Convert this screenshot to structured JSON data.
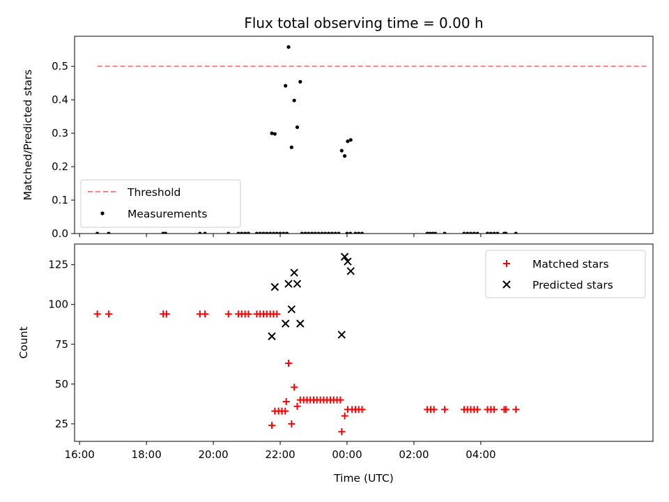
{
  "chart_data": {
    "title": "Flux total observing time = 0.00 h",
    "xlabel": "Time (UTC)",
    "x_units": "hours since 16:00 UTC",
    "xlim": [
      -0.15,
      17.15
    ],
    "x_ticks": [
      {
        "x": 0,
        "label": "16:00"
      },
      {
        "x": 2,
        "label": "18:00"
      },
      {
        "x": 4,
        "label": "20:00"
      },
      {
        "x": 6,
        "label": "22:00"
      },
      {
        "x": 8,
        "label": "00:00"
      },
      {
        "x": 10,
        "label": "02:00"
      },
      {
        "x": 12,
        "label": "04:00"
      }
    ],
    "panels": [
      {
        "type": "scatter",
        "ylabel": "Matched/Predicted stars",
        "ylim": [
          0,
          0.59
        ],
        "y_ticks": [
          "0.0",
          "0.1",
          "0.2",
          "0.3",
          "0.4",
          "0.5"
        ],
        "y_tick_values": [
          0,
          0.1,
          0.2,
          0.3,
          0.4,
          0.5
        ],
        "legend_position": "lower-left",
        "series": [
          {
            "name": "Threshold",
            "style": "dashed-line",
            "color": "#ff7f7f",
            "x": [
              0.53,
              17.0
            ],
            "y": [
              0.5,
              0.5
            ]
          },
          {
            "name": "Measurements",
            "style": "dot",
            "color": "#000000",
            "points": [
              [
                0.53,
                0
              ],
              [
                0.87,
                0
              ],
              [
                2.5,
                0
              ],
              [
                2.57,
                0
              ],
              [
                3.6,
                0
              ],
              [
                3.75,
                0
              ],
              [
                4.45,
                0
              ],
              [
                4.75,
                0
              ],
              [
                4.85,
                0
              ],
              [
                4.95,
                0
              ],
              [
                5.05,
                0
              ],
              [
                5.3,
                0
              ],
              [
                5.4,
                0
              ],
              [
                5.5,
                0
              ],
              [
                5.6,
                0
              ],
              [
                5.7,
                0
              ],
              [
                5.8,
                0
              ],
              [
                5.9,
                0
              ],
              [
                6.0,
                0
              ],
              [
                6.1,
                0
              ],
              [
                6.2,
                0
              ],
              [
                6.65,
                0
              ],
              [
                6.75,
                0
              ],
              [
                6.85,
                0
              ],
              [
                6.95,
                0
              ],
              [
                7.05,
                0
              ],
              [
                7.15,
                0
              ],
              [
                7.25,
                0
              ],
              [
                7.35,
                0
              ],
              [
                7.45,
                0
              ],
              [
                7.55,
                0
              ],
              [
                7.65,
                0
              ],
              [
                7.75,
                0
              ],
              [
                8.0,
                0
              ],
              [
                8.1,
                0
              ],
              [
                8.25,
                0
              ],
              [
                8.35,
                0
              ],
              [
                8.45,
                0
              ],
              [
                10.4,
                0
              ],
              [
                10.48,
                0
              ],
              [
                10.56,
                0
              ],
              [
                10.64,
                0
              ],
              [
                10.92,
                0
              ],
              [
                11.5,
                0
              ],
              [
                11.6,
                0
              ],
              [
                11.7,
                0
              ],
              [
                11.8,
                0
              ],
              [
                11.9,
                0
              ],
              [
                12.2,
                0
              ],
              [
                12.3,
                0
              ],
              [
                12.4,
                0
              ],
              [
                12.5,
                0
              ],
              [
                12.7,
                0
              ],
              [
                12.75,
                0
              ],
              [
                13.05,
                0
              ],
              [
                5.75,
                0.3
              ],
              [
                5.84,
                0.298
              ],
              [
                6.16,
                0.442
              ],
              [
                6.25,
                0.558
              ],
              [
                6.34,
                0.258
              ],
              [
                6.42,
                0.398
              ],
              [
                6.51,
                0.318
              ],
              [
                6.6,
                0.454
              ],
              [
                7.84,
                0.248
              ],
              [
                7.93,
                0.232
              ],
              [
                8.02,
                0.276
              ],
              [
                8.11,
                0.28
              ]
            ]
          }
        ]
      },
      {
        "type": "scatter",
        "ylabel": "Count",
        "ylim": [
          14,
          138
        ],
        "y_ticks": [
          "25",
          "50",
          "75",
          "100",
          "125"
        ],
        "y_tick_values": [
          25,
          50,
          75,
          100,
          125
        ],
        "legend_position": "top-right",
        "series": [
          {
            "name": "Matched stars",
            "marker": "+",
            "color": "#ff0000",
            "points": [
              [
                0.53,
                94
              ],
              [
                0.87,
                94
              ],
              [
                2.5,
                94
              ],
              [
                2.6,
                94
              ],
              [
                3.6,
                94
              ],
              [
                3.75,
                94
              ],
              [
                4.45,
                94
              ],
              [
                4.75,
                94
              ],
              [
                4.85,
                94
              ],
              [
                4.95,
                94
              ],
              [
                5.05,
                94
              ],
              [
                5.3,
                94
              ],
              [
                5.4,
                94
              ],
              [
                5.5,
                94
              ],
              [
                5.6,
                94
              ],
              [
                5.7,
                94
              ],
              [
                5.8,
                94
              ],
              [
                5.9,
                94
              ],
              [
                5.75,
                24
              ],
              [
                5.84,
                33
              ],
              [
                5.95,
                33
              ],
              [
                6.05,
                33
              ],
              [
                6.15,
                33
              ],
              [
                6.18,
                39
              ],
              [
                6.25,
                63
              ],
              [
                6.34,
                25
              ],
              [
                6.42,
                48
              ],
              [
                6.51,
                36
              ],
              [
                6.6,
                40
              ],
              [
                6.7,
                40
              ],
              [
                6.8,
                40
              ],
              [
                6.9,
                40
              ],
              [
                7.0,
                40
              ],
              [
                7.1,
                40
              ],
              [
                7.2,
                40
              ],
              [
                7.3,
                40
              ],
              [
                7.4,
                40
              ],
              [
                7.5,
                40
              ],
              [
                7.6,
                40
              ],
              [
                7.7,
                40
              ],
              [
                7.8,
                40
              ],
              [
                7.84,
                20
              ],
              [
                7.93,
                30
              ],
              [
                8.02,
                34
              ],
              [
                8.15,
                34
              ],
              [
                8.25,
                34
              ],
              [
                8.35,
                34
              ],
              [
                8.45,
                34
              ],
              [
                10.4,
                34
              ],
              [
                10.5,
                34
              ],
              [
                10.6,
                34
              ],
              [
                10.92,
                34
              ],
              [
                11.5,
                34
              ],
              [
                11.6,
                34
              ],
              [
                11.7,
                34
              ],
              [
                11.8,
                34
              ],
              [
                11.9,
                34
              ],
              [
                12.2,
                34
              ],
              [
                12.3,
                34
              ],
              [
                12.4,
                34
              ],
              [
                12.7,
                34
              ],
              [
                12.75,
                34
              ],
              [
                13.05,
                34
              ]
            ]
          },
          {
            "name": "Predicted stars",
            "marker": "x",
            "color": "#000000",
            "points": [
              [
                5.75,
                80
              ],
              [
                5.84,
                111
              ],
              [
                6.16,
                88
              ],
              [
                6.25,
                113
              ],
              [
                6.34,
                97
              ],
              [
                6.42,
                120
              ],
              [
                6.51,
                113
              ],
              [
                6.6,
                88
              ],
              [
                7.84,
                81
              ],
              [
                7.93,
                130
              ],
              [
                8.02,
                127
              ],
              [
                8.11,
                121
              ]
            ]
          }
        ]
      }
    ]
  }
}
